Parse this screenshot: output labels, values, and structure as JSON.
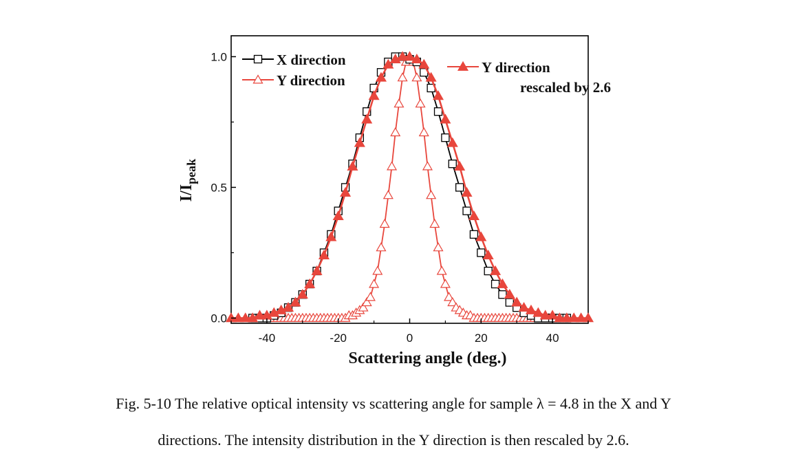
{
  "chart_data": {
    "type": "line",
    "xlabel": "Scattering angle (deg.)",
    "ylabel_main": "I/I",
    "ylabel_sub": "peak",
    "xlim": [
      -50,
      50
    ],
    "ylim": [
      -0.02,
      1.08
    ],
    "xticks": [
      -40,
      -20,
      0,
      20,
      40
    ],
    "xtick_labels": [
      "-40",
      "-20",
      "0",
      "20",
      "40"
    ],
    "yticks": [
      0.0,
      0.5,
      1.0
    ],
    "ytick_labels": [
      "0.0",
      "0.5",
      "1.0"
    ],
    "series": [
      {
        "name": "X direction",
        "color": "#000000",
        "marker": "open-square",
        "x": [
          -44,
          -42,
          -40,
          -38,
          -36,
          -34,
          -32,
          -30,
          -28,
          -26,
          -24,
          -22,
          -20,
          -18,
          -16,
          -14,
          -12,
          -10,
          -8,
          -6,
          -4,
          -2,
          0,
          2,
          4,
          6,
          8,
          10,
          12,
          14,
          16,
          18,
          20,
          22,
          24,
          26,
          28,
          30,
          32,
          34,
          36,
          38,
          40,
          42,
          44
        ],
        "y": [
          0.0,
          0.0,
          0.0,
          0.01,
          0.02,
          0.04,
          0.06,
          0.09,
          0.13,
          0.18,
          0.25,
          0.32,
          0.41,
          0.5,
          0.59,
          0.69,
          0.79,
          0.88,
          0.94,
          0.98,
          1.0,
          1.0,
          0.99,
          0.98,
          0.94,
          0.88,
          0.79,
          0.69,
          0.59,
          0.5,
          0.41,
          0.32,
          0.25,
          0.18,
          0.13,
          0.09,
          0.06,
          0.04,
          0.02,
          0.01,
          0.0,
          0.0,
          0.0,
          0.0,
          0.0
        ]
      },
      {
        "name": "Y direction",
        "color": "#e8463c",
        "marker": "open-triangle",
        "x": [
          -18,
          -17,
          -16,
          -15,
          -14,
          -13,
          -12,
          -11,
          -10,
          -9,
          -8,
          -7,
          -6,
          -5,
          -4,
          -3,
          -2,
          -1,
          0,
          1,
          2,
          3,
          4,
          5,
          6,
          7,
          8,
          9,
          10,
          11,
          12,
          13,
          14,
          15,
          16,
          17,
          18,
          19,
          20,
          21,
          22,
          23,
          24,
          25,
          26,
          27,
          28,
          29,
          30,
          31,
          32,
          33,
          34,
          35,
          36,
          37,
          38,
          39,
          40,
          -19,
          -20,
          -21,
          -22,
          -23,
          -24,
          -25,
          -26,
          -27,
          -28,
          -29,
          -30,
          -31,
          -32,
          -33,
          -34,
          -35,
          -36,
          -37,
          -38,
          -39,
          -40
        ],
        "y": [
          0.0,
          0.01,
          0.01,
          0.02,
          0.03,
          0.04,
          0.06,
          0.08,
          0.13,
          0.18,
          0.27,
          0.36,
          0.47,
          0.58,
          0.71,
          0.82,
          0.92,
          0.98,
          1.0,
          0.98,
          0.92,
          0.82,
          0.71,
          0.58,
          0.47,
          0.36,
          0.27,
          0.18,
          0.13,
          0.08,
          0.06,
          0.04,
          0.03,
          0.02,
          0.01,
          0.01,
          0.0,
          0.0,
          0.0,
          0.0,
          0.0,
          0.0,
          0.0,
          0.0,
          0.0,
          0.0,
          0.0,
          0.0,
          0.0,
          0.0,
          0.0,
          0.0,
          0.0,
          0.0,
          0.0,
          0.0,
          0.0,
          0.0,
          0.0,
          0.0,
          0.0,
          0.0,
          0.0,
          0.0,
          0.0,
          0.0,
          0.0,
          0.0,
          0.0,
          0.0,
          0.0,
          0.0,
          0.0,
          0.0,
          0.0,
          0.0,
          0.0,
          0.0,
          0.0,
          0.0,
          0.0
        ]
      },
      {
        "name": "Y direction rescaled by 2.6",
        "name_line1": "Y direction",
        "name_line2": "rescaled by 2.6",
        "color": "#e8463c",
        "marker": "filled-triangle",
        "x": [
          -50,
          -48,
          -46,
          -44,
          -42,
          -40,
          -38,
          -36,
          -34,
          -32,
          -30,
          -28,
          -26,
          -24,
          -22,
          -20,
          -18,
          -16,
          -14,
          -12,
          -10,
          -8,
          -6,
          -4,
          -2,
          0,
          2,
          4,
          6,
          8,
          10,
          12,
          14,
          16,
          18,
          20,
          22,
          24,
          26,
          28,
          30,
          32,
          34,
          36,
          38,
          40,
          42,
          44,
          46,
          48,
          50
        ],
        "y": [
          0.0,
          0.0,
          0.0,
          0.0,
          0.01,
          0.01,
          0.02,
          0.03,
          0.04,
          0.06,
          0.09,
          0.13,
          0.18,
          0.24,
          0.31,
          0.39,
          0.48,
          0.58,
          0.67,
          0.76,
          0.85,
          0.92,
          0.97,
          0.99,
          1.0,
          1.0,
          0.99,
          0.97,
          0.92,
          0.85,
          0.76,
          0.67,
          0.58,
          0.48,
          0.39,
          0.31,
          0.24,
          0.18,
          0.13,
          0.09,
          0.06,
          0.04,
          0.03,
          0.02,
          0.01,
          0.01,
          0.0,
          0.0,
          0.0,
          0.0,
          0.0
        ]
      }
    ],
    "legend_placement": "top-left and top-right"
  },
  "caption": {
    "line1": "Fig. 5-10    The relative optical intensity vs scattering angle for sample λ = 4.8 in the X and Y",
    "line2": "directions. The intensity distribution in the Y direction is then rescaled by 2.6."
  }
}
